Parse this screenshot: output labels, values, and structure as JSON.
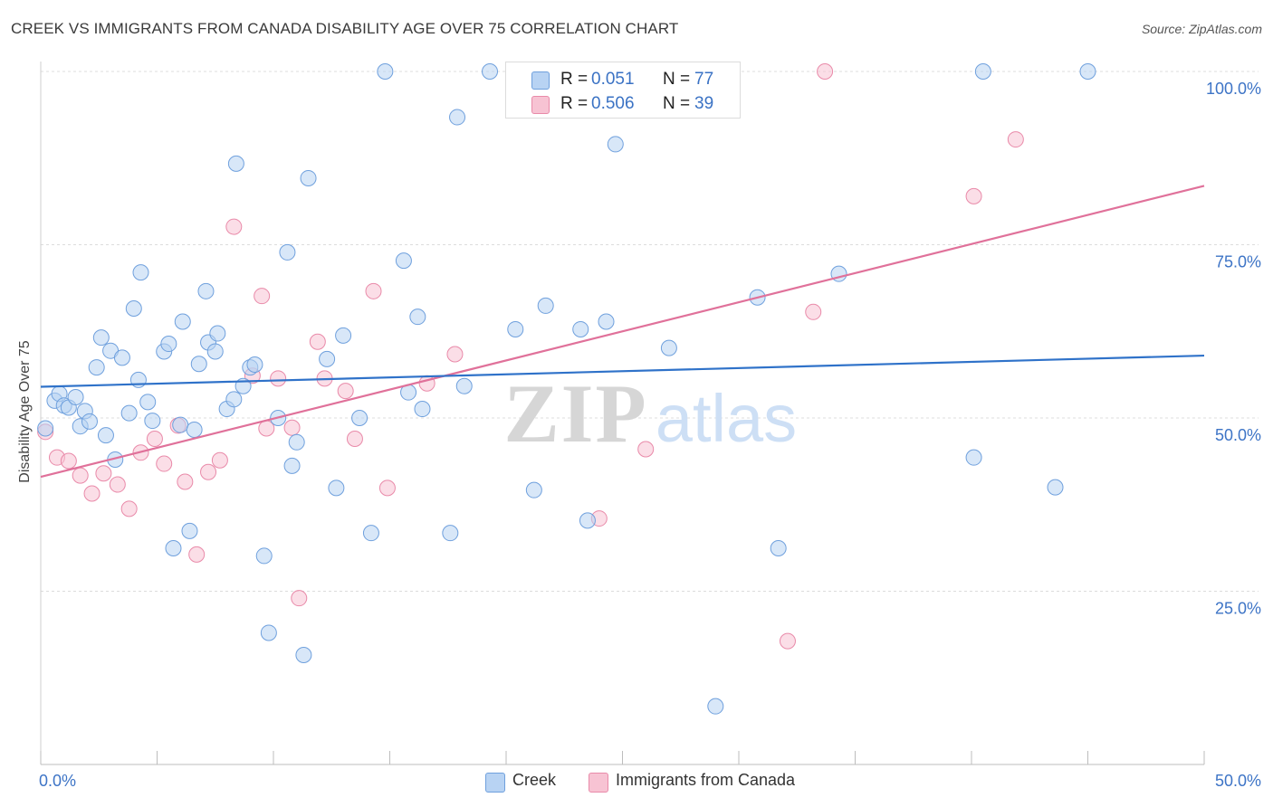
{
  "header": {
    "title": "CREEK VS IMMIGRANTS FROM CANADA DISABILITY AGE OVER 75 CORRELATION CHART",
    "source": "Source: ZipAtlas.com"
  },
  "watermark": {
    "zip": "ZIP",
    "atlas": "atlas"
  },
  "colors": {
    "creek_fill": "#b8d3f3",
    "creek_stroke": "#6fa0dd",
    "creek_line": "#2f72c9",
    "canada_fill": "#f7c3d3",
    "canada_stroke": "#e98aa9",
    "canada_line": "#e0719a",
    "tick_label": "#3d74c6",
    "grid": "#dcdcdc"
  },
  "legend_top": [
    {
      "r_label": "R =",
      "r_value": "0.051",
      "n_label": "N =",
      "n_value": "77"
    },
    {
      "r_label": "R =",
      "r_value": "0.506",
      "n_label": "N =",
      "n_value": "39"
    }
  ],
  "legend_bottom": [
    "Creek",
    "Immigrants from Canada"
  ],
  "chart_data": {
    "type": "scatter",
    "title": "CREEK VS IMMIGRANTS FROM CANADA DISABILITY AGE OVER 75 CORRELATION CHART",
    "xlabel": "",
    "ylabel": "Disability Age Over 75",
    "xlim": [
      0,
      50
    ],
    "ylim": [
      0,
      100
    ],
    "x_tick_labels": [
      "0.0%",
      "50.0%"
    ],
    "y_tick_labels": [
      "100.0%",
      "75.0%",
      "50.0%",
      "25.0%"
    ],
    "y_ticks": [
      100,
      75,
      50,
      25
    ],
    "grid": true,
    "legend_position": "top-center",
    "series": [
      {
        "name": "Creek",
        "r": 0.051,
        "n": 77,
        "trend": [
          [
            0,
            54.5
          ],
          [
            50,
            59.0
          ]
        ],
        "points": [
          [
            0.2,
            48.5
          ],
          [
            0.6,
            52.5
          ],
          [
            0.8,
            53.5
          ],
          [
            1.0,
            51.8
          ],
          [
            1.2,
            51.5
          ],
          [
            1.5,
            53.0
          ],
          [
            1.7,
            48.8
          ],
          [
            1.9,
            51.0
          ],
          [
            2.1,
            49.5
          ],
          [
            2.4,
            57.3
          ],
          [
            2.6,
            61.6
          ],
          [
            2.8,
            47.5
          ],
          [
            3.0,
            59.7
          ],
          [
            3.2,
            44.0
          ],
          [
            3.5,
            58.7
          ],
          [
            3.8,
            50.7
          ],
          [
            4.0,
            65.8
          ],
          [
            4.2,
            55.5
          ],
          [
            4.3,
            71.0
          ],
          [
            4.6,
            52.3
          ],
          [
            4.8,
            49.6
          ],
          [
            5.3,
            59.6
          ],
          [
            5.5,
            60.7
          ],
          [
            5.7,
            31.2
          ],
          [
            6.0,
            49.0
          ],
          [
            6.1,
            63.9
          ],
          [
            6.4,
            33.7
          ],
          [
            6.6,
            48.3
          ],
          [
            6.8,
            57.8
          ],
          [
            7.1,
            68.3
          ],
          [
            7.2,
            60.9
          ],
          [
            7.5,
            59.6
          ],
          [
            7.6,
            62.2
          ],
          [
            8.0,
            51.3
          ],
          [
            8.3,
            52.7
          ],
          [
            8.4,
            86.7
          ],
          [
            8.7,
            54.6
          ],
          [
            9.0,
            57.3
          ],
          [
            9.2,
            57.7
          ],
          [
            9.6,
            30.1
          ],
          [
            9.8,
            19.0
          ],
          [
            10.2,
            50.0
          ],
          [
            10.6,
            73.9
          ],
          [
            10.8,
            43.1
          ],
          [
            11.0,
            46.5
          ],
          [
            11.3,
            15.8
          ],
          [
            11.5,
            84.6
          ],
          [
            12.3,
            58.5
          ],
          [
            12.7,
            39.9
          ],
          [
            13.0,
            61.9
          ],
          [
            13.7,
            50.0
          ],
          [
            14.2,
            33.4
          ],
          [
            14.8,
            100.0
          ],
          [
            15.6,
            72.7
          ],
          [
            15.8,
            53.7
          ],
          [
            16.2,
            64.6
          ],
          [
            16.4,
            51.3
          ],
          [
            17.6,
            33.4
          ],
          [
            17.9,
            93.4
          ],
          [
            18.2,
            54.6
          ],
          [
            19.3,
            100.0
          ],
          [
            20.4,
            62.8
          ],
          [
            21.2,
            39.6
          ],
          [
            21.7,
            66.2
          ],
          [
            23.2,
            62.8
          ],
          [
            23.5,
            35.2
          ],
          [
            24.3,
            63.9
          ],
          [
            24.7,
            89.5
          ],
          [
            27.0,
            60.1
          ],
          [
            29.0,
            8.4
          ],
          [
            30.8,
            67.4
          ],
          [
            31.7,
            31.2
          ],
          [
            34.3,
            70.8
          ],
          [
            40.1,
            44.3
          ],
          [
            40.5,
            100.0
          ],
          [
            43.6,
            40.0
          ],
          [
            45.0,
            100.0
          ]
        ]
      },
      {
        "name": "Immigrants from Canada",
        "r": 0.506,
        "n": 39,
        "trend": [
          [
            0,
            41.5
          ],
          [
            50,
            83.5
          ]
        ],
        "points": [
          [
            0.2,
            48.0
          ],
          [
            0.7,
            44.3
          ],
          [
            1.2,
            43.8
          ],
          [
            1.7,
            41.7
          ],
          [
            2.2,
            39.1
          ],
          [
            2.7,
            42.0
          ],
          [
            3.3,
            40.4
          ],
          [
            3.8,
            36.9
          ],
          [
            4.3,
            45.0
          ],
          [
            4.9,
            47.0
          ],
          [
            5.3,
            43.4
          ],
          [
            5.9,
            48.9
          ],
          [
            6.2,
            40.8
          ],
          [
            6.7,
            30.3
          ],
          [
            7.2,
            42.2
          ],
          [
            7.7,
            43.9
          ],
          [
            8.3,
            77.6
          ],
          [
            9.1,
            56.1
          ],
          [
            9.5,
            67.6
          ],
          [
            9.7,
            48.5
          ],
          [
            10.2,
            55.7
          ],
          [
            10.8,
            48.6
          ],
          [
            11.1,
            24.0
          ],
          [
            11.9,
            61.0
          ],
          [
            12.2,
            55.7
          ],
          [
            13.1,
            53.9
          ],
          [
            13.5,
            47.0
          ],
          [
            14.3,
            68.3
          ],
          [
            14.9,
            39.9
          ],
          [
            16.6,
            55.0
          ],
          [
            17.8,
            59.2
          ],
          [
            20.4,
            100.0
          ],
          [
            24.0,
            35.5
          ],
          [
            26.0,
            45.5
          ],
          [
            32.1,
            17.8
          ],
          [
            33.2,
            65.3
          ],
          [
            33.7,
            100.0
          ],
          [
            40.1,
            82.0
          ],
          [
            41.9,
            90.2
          ]
        ]
      }
    ]
  }
}
